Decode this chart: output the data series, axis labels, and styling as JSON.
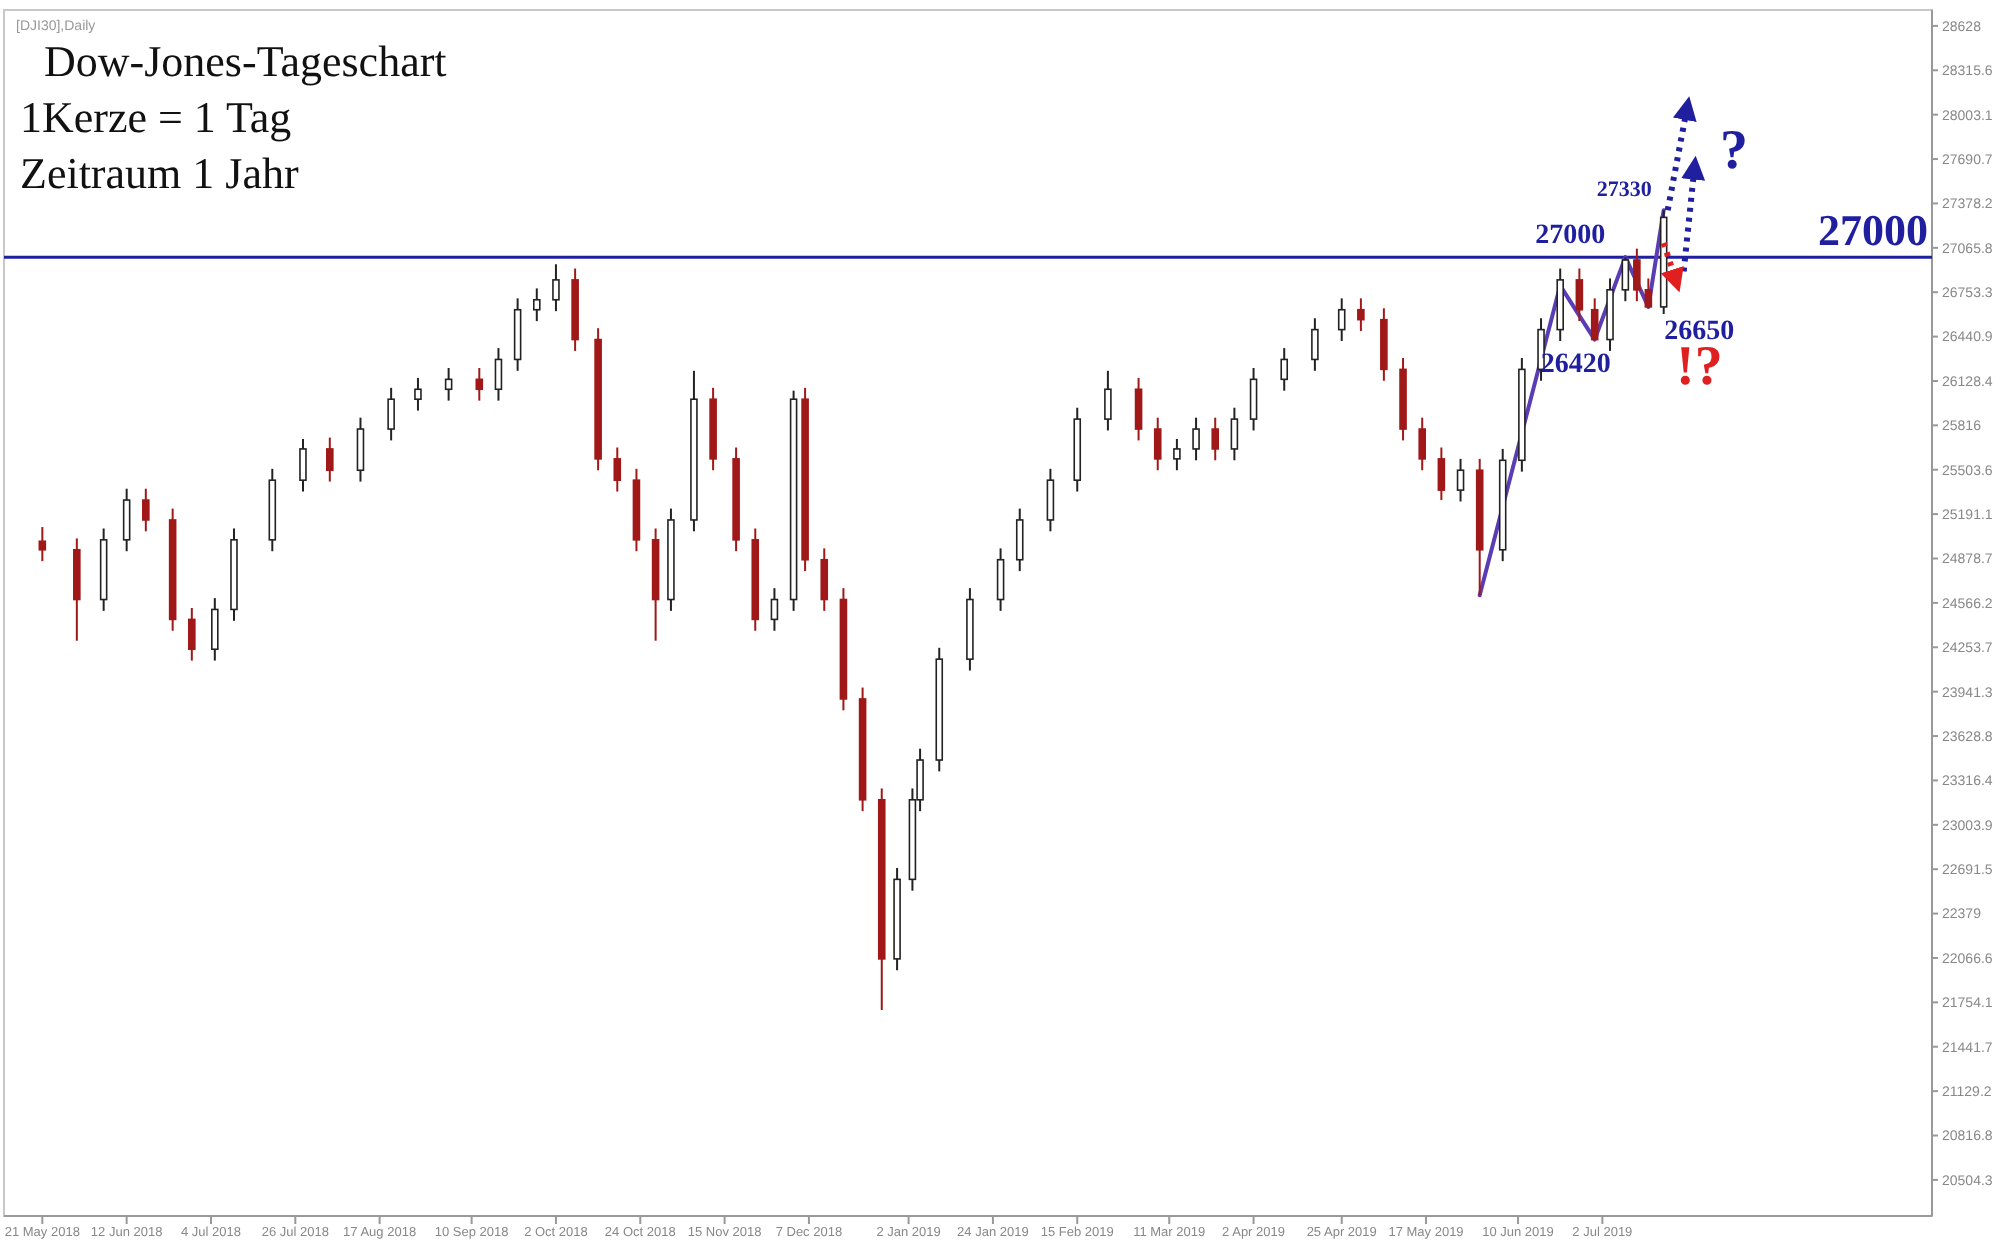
{
  "chart_data": {
    "type": "candlestick",
    "title": "Dow-Jones-Tageschart",
    "subtitle": "1Kerze = 1 Tag",
    "annotations": [
      "[DJI30],Daily",
      "Zeitraum 1 Jahr",
      {
        "text": "27330",
        "x": "2019-07-18",
        "y": 27330
      },
      {
        "text": "27000",
        "x": "2019-07-08",
        "y": 27000
      },
      {
        "text": "26650",
        "x": "2019-07-14",
        "y": 26650
      },
      {
        "text": "26420",
        "x": "2019-06-30",
        "y": 26420
      },
      "?",
      "!?"
    ],
    "x": [
      "2018-05-21",
      "2018-05-30",
      "2018-06-06",
      "2018-06-12",
      "2018-06-17",
      "2018-06-24",
      "2018-06-29",
      "2018-07-05",
      "2018-07-10",
      "2018-07-20",
      "2018-07-28",
      "2018-08-04",
      "2018-08-12",
      "2018-08-20",
      "2018-08-27",
      "2018-09-04",
      "2018-09-12",
      "2018-09-17",
      "2018-09-22",
      "2018-09-27",
      "2018-10-02",
      "2018-10-07",
      "2018-10-13",
      "2018-10-18",
      "2018-10-23",
      "2018-10-28",
      "2018-11-01",
      "2018-11-07",
      "2018-11-12",
      "2018-11-18",
      "2018-11-23",
      "2018-11-28",
      "2018-12-03",
      "2018-12-06",
      "2018-12-11",
      "2018-12-16",
      "2018-12-21",
      "2018-12-26",
      "2018-12-30",
      "2019-01-03",
      "2019-01-05",
      "2019-01-10",
      "2019-01-18",
      "2019-01-26",
      "2019-01-31",
      "2019-02-08",
      "2019-02-15",
      "2019-02-23",
      "2019-03-03",
      "2019-03-08",
      "2019-03-13",
      "2019-03-18",
      "2019-03-23",
      "2019-03-28",
      "2019-04-02",
      "2019-04-10",
      "2019-04-18",
      "2019-04-25",
      "2019-04-30",
      "2019-05-06",
      "2019-05-11",
      "2019-05-16",
      "2019-05-21",
      "2019-05-26",
      "2019-05-31",
      "2019-06-06",
      "2019-06-11",
      "2019-06-16",
      "2019-06-21",
      "2019-06-26",
      "2019-06-30",
      "2019-07-04",
      "2019-07-08",
      "2019-07-11",
      "2019-07-14",
      "2019-07-18"
    ],
    "ohlc": [
      [
        25000,
        25100,
        24860,
        24940
      ],
      [
        24940,
        25020,
        24300,
        24590
      ],
      [
        24590,
        25090,
        24510,
        25010
      ],
      [
        25010,
        25370,
        24930,
        25290
      ],
      [
        25290,
        25370,
        25070,
        25150
      ],
      [
        25150,
        25230,
        24370,
        24450
      ],
      [
        24450,
        24530,
        24160,
        24240
      ],
      [
        24240,
        24600,
        24160,
        24520
      ],
      [
        24520,
        25090,
        24440,
        25010
      ],
      [
        25010,
        25510,
        24930,
        25430
      ],
      [
        25430,
        25720,
        25350,
        25650
      ],
      [
        25650,
        25730,
        25420,
        25500
      ],
      [
        25500,
        25870,
        25420,
        25790
      ],
      [
        25790,
        26080,
        25710,
        26000
      ],
      [
        26000,
        26150,
        25920,
        26070
      ],
      [
        26070,
        26220,
        25990,
        26140
      ],
      [
        26140,
        26220,
        25990,
        26070
      ],
      [
        26070,
        26360,
        25990,
        26280
      ],
      [
        26280,
        26710,
        26200,
        26630
      ],
      [
        26630,
        26780,
        26550,
        26700
      ],
      [
        26700,
        26950,
        26620,
        26840
      ],
      [
        26840,
        26920,
        26340,
        26420
      ],
      [
        26420,
        26500,
        25500,
        25580
      ],
      [
        25580,
        25660,
        25350,
        25430
      ],
      [
        25430,
        25510,
        24930,
        25010
      ],
      [
        25010,
        25090,
        24300,
        24590
      ],
      [
        24590,
        25230,
        24510,
        25150
      ],
      [
        25150,
        26200,
        25070,
        26000
      ],
      [
        26000,
        26080,
        25500,
        25580
      ],
      [
        25580,
        25660,
        24930,
        25010
      ],
      [
        25010,
        25090,
        24370,
        24450
      ],
      [
        24450,
        24670,
        24370,
        24590
      ],
      [
        24590,
        26060,
        24510,
        26000
      ],
      [
        26000,
        26080,
        24790,
        24870
      ],
      [
        24870,
        24950,
        24510,
        24590
      ],
      [
        24590,
        24670,
        23810,
        23890
      ],
      [
        23890,
        23970,
        23100,
        23180
      ],
      [
        23180,
        23260,
        21700,
        22060
      ],
      [
        22060,
        22700,
        21980,
        22620
      ],
      [
        22620,
        23260,
        22540,
        23180
      ],
      [
        23180,
        23540,
        23100,
        23460
      ],
      [
        23460,
        24250,
        23380,
        24170
      ],
      [
        24170,
        24670,
        24090,
        24590
      ],
      [
        24590,
        24950,
        24510,
        24870
      ],
      [
        24870,
        25230,
        24790,
        25150
      ],
      [
        25150,
        25510,
        25070,
        25430
      ],
      [
        25430,
        25940,
        25350,
        25860
      ],
      [
        25860,
        26200,
        25780,
        26070
      ],
      [
        26070,
        26150,
        25710,
        25790
      ],
      [
        25790,
        25870,
        25500,
        25580
      ],
      [
        25580,
        25720,
        25500,
        25650
      ],
      [
        25650,
        25870,
        25570,
        25790
      ],
      [
        25790,
        25870,
        25570,
        25650
      ],
      [
        25650,
        25940,
        25570,
        25860
      ],
      [
        25860,
        26220,
        25780,
        26140
      ],
      [
        26140,
        26360,
        26060,
        26280
      ],
      [
        26280,
        26570,
        26200,
        26490
      ],
      [
        26490,
        26710,
        26410,
        26630
      ],
      [
        26630,
        26710,
        26480,
        26560
      ],
      [
        26560,
        26640,
        26130,
        26210
      ],
      [
        26210,
        26290,
        25710,
        25790
      ],
      [
        25790,
        25870,
        25500,
        25580
      ],
      [
        25580,
        25660,
        25290,
        25360
      ],
      [
        25360,
        25580,
        25280,
        25500
      ],
      [
        25500,
        25580,
        24620,
        24940
      ],
      [
        24940,
        25650,
        24860,
        25570
      ],
      [
        25570,
        26290,
        25490,
        26210
      ],
      [
        26210,
        26570,
        26130,
        26490
      ],
      [
        26490,
        26920,
        26410,
        26840
      ],
      [
        26840,
        26920,
        26550,
        26630
      ],
      [
        26630,
        26710,
        26420,
        26420
      ],
      [
        26420,
        26850,
        26340,
        26770
      ],
      [
        26770,
        27000,
        26690,
        26980
      ],
      [
        26980,
        27060,
        26690,
        26770
      ],
      [
        26770,
        26850,
        26650,
        26650
      ],
      [
        26650,
        27330,
        26600,
        27280
      ]
    ],
    "series": [
      {
        "type": "line",
        "color": "#5a3cb4",
        "x": [
          "2019-05-31",
          "2019-06-21",
          "2019-06-30",
          "2019-07-08",
          "2019-07-14",
          "2019-07-18"
        ],
        "values": [
          24620,
          26800,
          26420,
          27000,
          26650,
          27330
        ]
      }
    ],
    "xlim": [
      "2018-05-11",
      "2019-09-26"
    ],
    "xticks": [
      {
        "value": "2018-05-21",
        "label": "21 May 2018"
      },
      {
        "value": "2018-06-12",
        "label": "12 Jun 2018"
      },
      {
        "value": "2018-07-04",
        "label": "4 Jul 2018"
      },
      {
        "value": "2018-07-26",
        "label": "26 Jul 2018"
      },
      {
        "value": "2018-08-17",
        "label": "17 Aug 2018"
      },
      {
        "value": "2018-09-10",
        "label": "10 Sep 2018"
      },
      {
        "value": "2018-10-02",
        "label": "2 Oct 2018"
      },
      {
        "value": "2018-10-24",
        "label": "24 Oct 2018"
      },
      {
        "value": "2018-11-15",
        "label": "15 Nov 2018"
      },
      {
        "value": "2018-12-07",
        "label": "7 Dec 2018"
      },
      {
        "value": "2019-01-02",
        "label": "2 Jan 2019"
      },
      {
        "value": "2019-01-24",
        "label": "24 Jan 2019"
      },
      {
        "value": "2019-02-15",
        "label": "15 Feb 2019"
      },
      {
        "value": "2019-03-11",
        "label": "11 Mar 2019"
      },
      {
        "value": "2019-04-02",
        "label": "2 Apr 2019"
      },
      {
        "value": "2019-04-25",
        "label": "25 Apr 2019"
      },
      {
        "value": "2019-05-17",
        "label": "17 May 2019"
      },
      {
        "value": "2019-06-10",
        "label": "10 Jun 2019"
      },
      {
        "value": "2019-07-02",
        "label": "2 Jul 2019"
      }
    ],
    "ylim": [
      20250,
      28740
    ],
    "yticks": [
      20504.3,
      20816.8,
      21129.2,
      21441.7,
      21754.1,
      22066.6,
      22379.0,
      22691.5,
      23003.9,
      23316.4,
      23628.8,
      23941.3,
      24253.7,
      24566.2,
      24878.7,
      25191.1,
      25503.6,
      25816.0,
      26128.4,
      26440.9,
      26753.3,
      27065.8,
      27378.2,
      27690.7,
      28003.1,
      28315.6,
      28628.0
    ],
    "ref_lines": [
      {
        "axis": "y",
        "value": 27000,
        "label": "27000",
        "color": "#1f1fa0"
      }
    ]
  }
}
